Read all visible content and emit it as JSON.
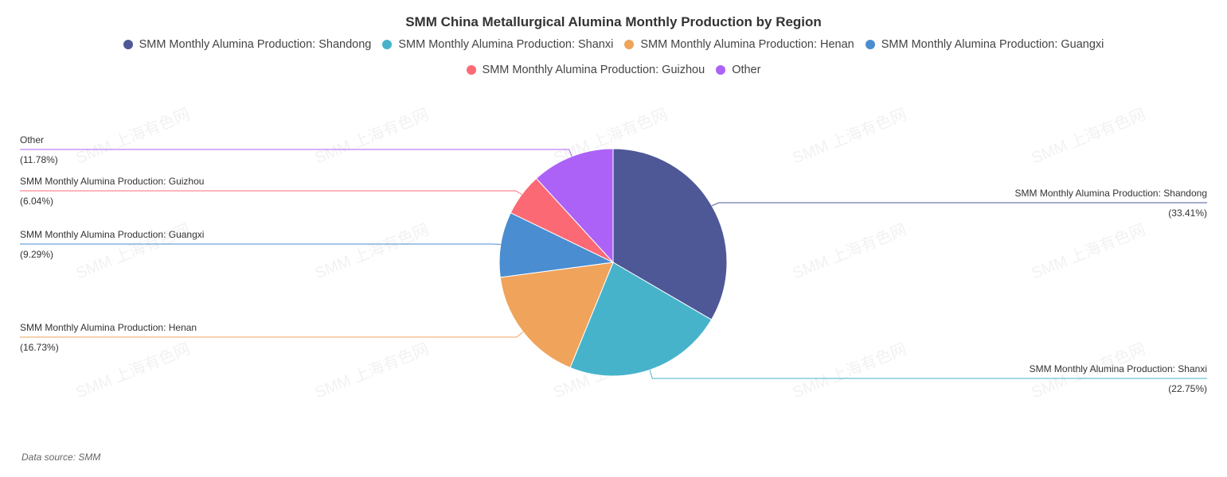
{
  "title": "SMM China Metallurgical Alumina Monthly Production by Region",
  "source": "Data source:  SMM",
  "watermark": "SMM 上海有色网",
  "chart_data": {
    "type": "pie",
    "title": "SMM China Metallurgical Alumina Monthly Production by Region",
    "series": [
      {
        "name": "SMM Monthly Alumina Production: Shandong",
        "value": 33.41,
        "pct_label": "(33.41%)",
        "color": "#4e5897"
      },
      {
        "name": "SMM Monthly Alumina Production: Shanxi",
        "value": 22.75,
        "pct_label": "(22.75%)",
        "color": "#47b3cb"
      },
      {
        "name": "SMM Monthly Alumina Production: Henan",
        "value": 16.73,
        "pct_label": "(16.73%)",
        "color": "#efa35b"
      },
      {
        "name": "SMM Monthly Alumina Production: Guangxi",
        "value": 9.29,
        "pct_label": "(9.29%)",
        "color": "#4a8dd0"
      },
      {
        "name": "SMM Monthly Alumina Production: Guizhou",
        "value": 6.04,
        "pct_label": "(6.04%)",
        "color": "#fb6a74"
      },
      {
        "name": "Other",
        "value": 11.78,
        "pct_label": "(11.78%)",
        "color": "#ac62f7"
      }
    ],
    "legend_position": "top"
  }
}
